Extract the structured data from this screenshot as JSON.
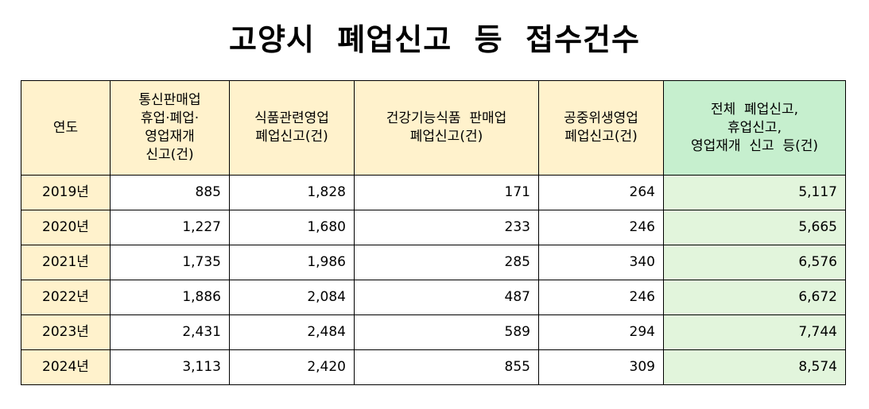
{
  "title": "고양시  폐업신고  등  접수건수",
  "headers": [
    {
      "lines": [
        "연도"
      ]
    },
    {
      "lines": [
        "통신판매업",
        "휴업·폐업·",
        "영업재개",
        "신고(건)"
      ]
    },
    {
      "lines": [
        "식품관련영업",
        "폐업신고(건)"
      ]
    },
    {
      "lines": [
        "건강기능식품  판매업",
        "폐업신고(건)"
      ]
    },
    {
      "lines": [
        "공중위생영업",
        "폐업신고(건)"
      ]
    },
    {
      "lines": [
        "전체  폐업신고,",
        "휴업신고,",
        "영업재개  신고  등(건)"
      ]
    }
  ],
  "rows": [
    {
      "year": "2019년",
      "ecommerce": "885",
      "food": "1,828",
      "health": "171",
      "hygiene": "264",
      "total": "5,117"
    },
    {
      "year": "2020년",
      "ecommerce": "1,227",
      "food": "1,680",
      "health": "233",
      "hygiene": "246",
      "total": "5,665"
    },
    {
      "year": "2021년",
      "ecommerce": "1,735",
      "food": "1,986",
      "health": "285",
      "hygiene": "340",
      "total": "6,576"
    },
    {
      "year": "2022년",
      "ecommerce": "1,886",
      "food": "2,084",
      "health": "487",
      "hygiene": "246",
      "total": "6,672"
    },
    {
      "year": "2023년",
      "ecommerce": "2,431",
      "food": "2,484",
      "health": "589",
      "hygiene": "294",
      "total": "7,744"
    },
    {
      "year": "2024년",
      "ecommerce": "3,113",
      "food": "2,420",
      "health": "855",
      "hygiene": "309",
      "total": "8,574"
    }
  ],
  "colors": {
    "header_yellow": "#fff2cc",
    "header_green": "#c6efce",
    "total_green": "#e2f5dc"
  }
}
